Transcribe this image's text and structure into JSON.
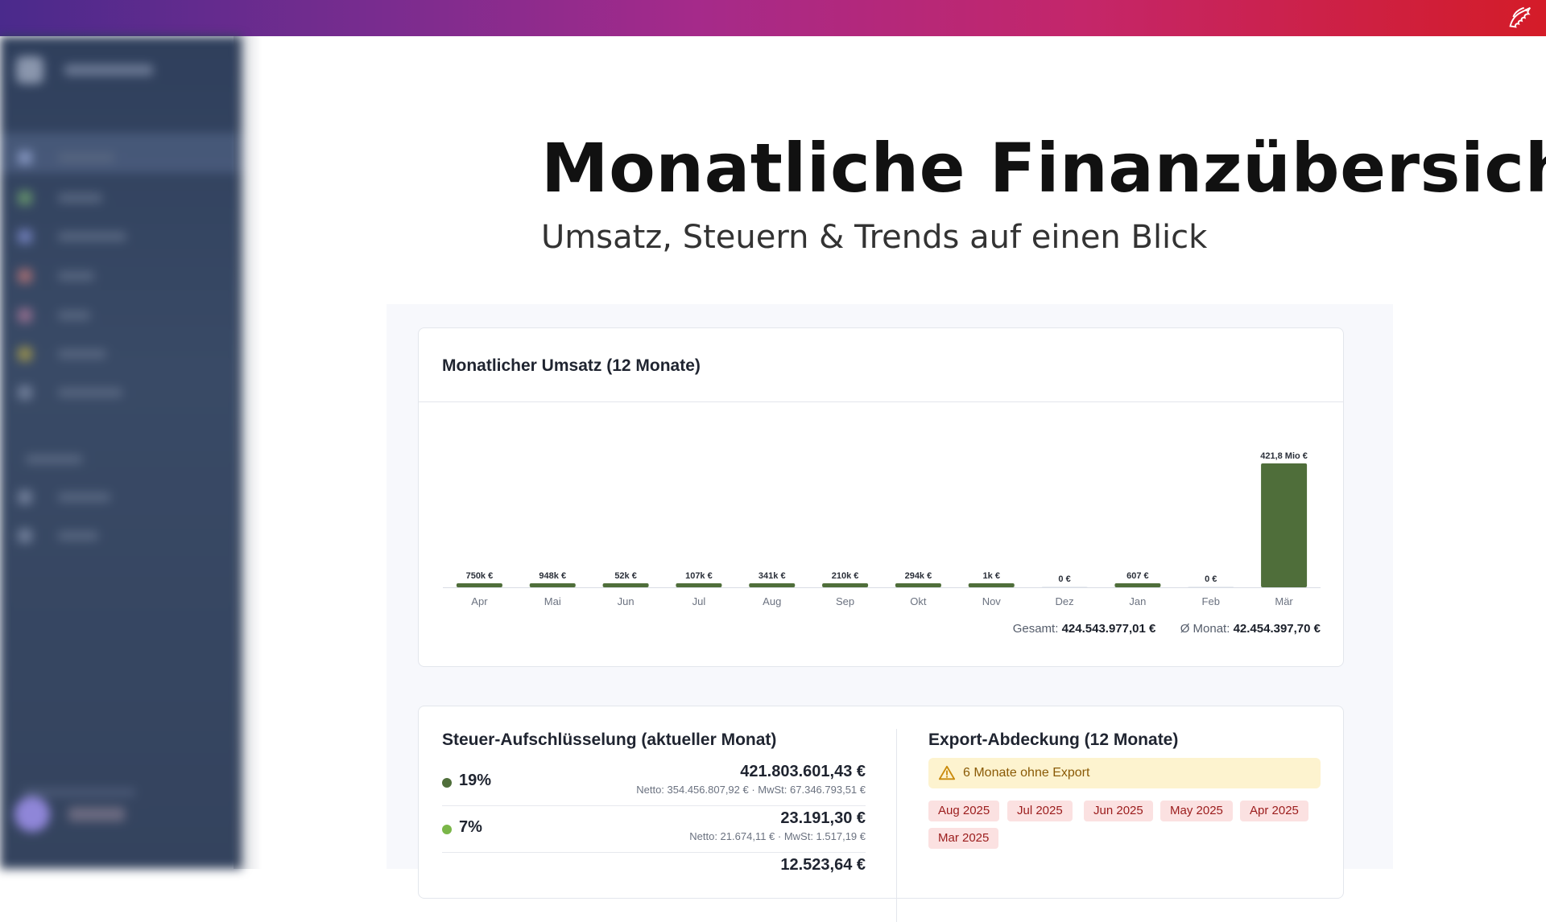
{
  "page": {
    "title": "Monatliche Finanzübersicht",
    "subtitle": "Umsatz, Steuern & Trends auf einen Blick"
  },
  "topbar": {
    "logo_icon": "dragon-logo-icon"
  },
  "revenue_card": {
    "title": "Monatlicher Umsatz (12 Monate)",
    "total_label": "Gesamt:",
    "total_value": "424.543.977,01 €",
    "avg_label": "Ø Monat:",
    "avg_value": "42.454.397,70 €"
  },
  "chart_data": {
    "type": "bar",
    "title": "Monatlicher Umsatz (12 Monate)",
    "xlabel": "",
    "ylabel": "",
    "categories": [
      "Apr",
      "Mai",
      "Jun",
      "Jul",
      "Aug",
      "Sep",
      "Okt",
      "Nov",
      "Dez",
      "Jan",
      "Feb",
      "Mär"
    ],
    "values": [
      750000,
      948000,
      52000,
      107000,
      341000,
      210000,
      294000,
      1000,
      0,
      607,
      0,
      421800000
    ],
    "value_labels": [
      "750k €",
      "948k €",
      "52k €",
      "107k €",
      "341k €",
      "210k €",
      "294k €",
      "1k €",
      "0 €",
      "607 €",
      "0 €",
      "421,8 Mio €"
    ],
    "ylim": [
      0,
      421800000
    ],
    "grid": false,
    "bar_color": "#4f6e3a"
  },
  "tax_card": {
    "title": "Steuer-Aufschlüsselung (aktueller Monat)",
    "rows": [
      {
        "rate": "19%",
        "amount": "421.803.601,43 €",
        "detail": "Netto: 354.456.807,92 € · MwSt: 67.346.793,51 €",
        "color": "#4f6e3a"
      },
      {
        "rate": "7%",
        "amount": "23.191,30 €",
        "detail": "Netto: 21.674,11 € · MwSt: 1.517,19 €",
        "color": "#7ab648"
      },
      {
        "rate": "",
        "amount": "12.523,64 €",
        "detail": "",
        "color": "#a0a0a0"
      }
    ]
  },
  "export_card": {
    "title": "Export-Abdeckung (12 Monate)",
    "warning": "6 Monate ohne Export",
    "warning_icon": "warning-triangle-icon",
    "missing_months": [
      "Aug 2025",
      "Jul 2025",
      "Jun 2025",
      "May 2025",
      "Apr 2025",
      "Mar 2025"
    ]
  }
}
